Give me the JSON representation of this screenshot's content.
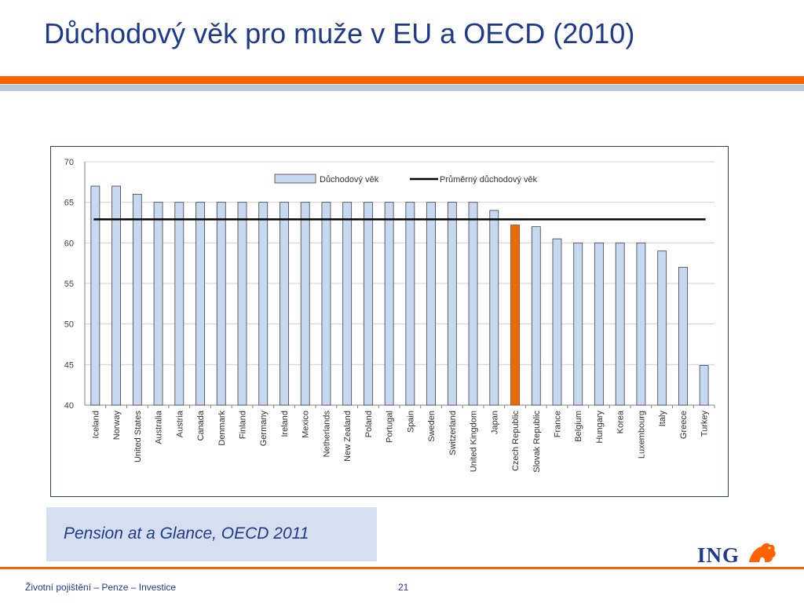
{
  "slide": {
    "title": "Důchodový věk pro muže v EU a OECD (2010)",
    "source": "Pension at a Glance, OECD 2011",
    "footer": "Životní pojištění – Penze – Investice",
    "page_number": "21",
    "logo_text": "ING",
    "logo_icon": "lion-icon"
  },
  "colors": {
    "accent_orange": "#ff6200",
    "accent_blue": "#b9c6dc",
    "bar_fill": "#c6d9f1",
    "bar_highlight": "#e46c0a",
    "average_line": "#000000"
  },
  "chart_data": {
    "type": "bar",
    "categories": [
      "Iceland",
      "Norway",
      "United States",
      "Australia",
      "Austria",
      "Canada",
      "Denmark",
      "Finland",
      "Germany",
      "Ireland",
      "Mexico",
      "Netherlands",
      "New Zealand",
      "Poland",
      "Portugal",
      "Spain",
      "Sweden",
      "Switzerland",
      "United Kingdom",
      "Japan",
      "Czech Republic",
      "Slovak Republic",
      "France",
      "Belgium",
      "Hungary",
      "Korea",
      "Luxembourg",
      "Italy",
      "Greece",
      "Turkey"
    ],
    "series": [
      {
        "name": "Důchodový věk",
        "values": [
          67,
          67,
          66,
          65,
          65,
          65,
          65,
          65,
          65,
          65,
          65,
          65,
          65,
          65,
          65,
          65,
          65,
          65,
          65,
          64,
          62.2,
          62,
          60.5,
          60,
          60,
          60,
          60,
          59,
          57,
          44.9
        ]
      },
      {
        "name": "Průměrný důchodový věk",
        "type": "line",
        "value": 62.9
      }
    ],
    "highlight_category": "Czech Republic",
    "ylim": [
      40,
      70
    ],
    "yticks": [
      40,
      45,
      50,
      55,
      60,
      65,
      70
    ],
    "grid": true,
    "legend_position": "top",
    "title": "",
    "xlabel": "",
    "ylabel": ""
  }
}
